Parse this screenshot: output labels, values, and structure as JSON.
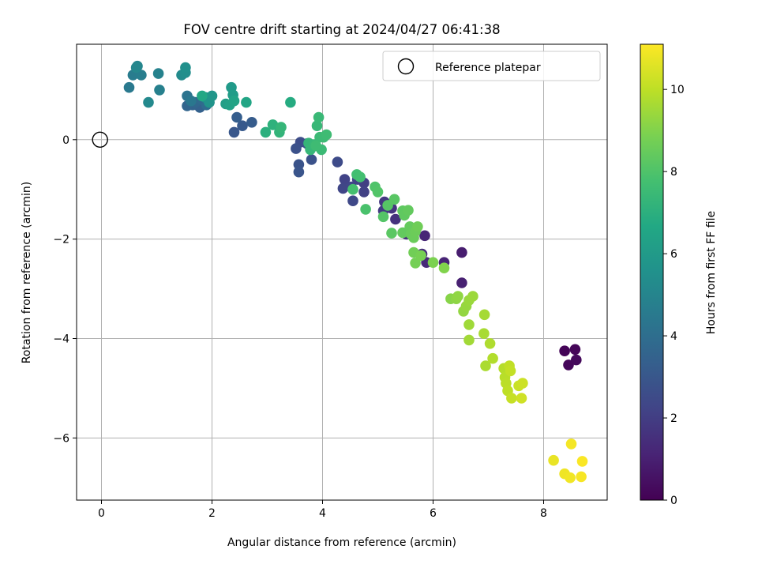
{
  "chart_data": {
    "type": "scatter",
    "title": "FOV centre drift starting at 2024/04/27 06:41:38",
    "xlabel": "Angular distance from reference (arcmin)",
    "ylabel": "Rotation from reference (arcmin)",
    "xlim": [
      -0.45,
      9.15
    ],
    "ylim": [
      -7.25,
      1.92
    ],
    "xticks": [
      0,
      2,
      4,
      6,
      8
    ],
    "yticks": [
      0,
      -2,
      -4,
      -6
    ],
    "xtick_labels": [
      "0",
      "2",
      "4",
      "6",
      "8"
    ],
    "ytick_labels": [
      "0",
      "−2",
      "−4",
      "−6"
    ],
    "grid": true,
    "legend": {
      "position": "top-right",
      "label": "Reference platepar"
    },
    "reference_point": {
      "x": 0,
      "y": 0
    },
    "colorbar": {
      "label": "Hours from first FF file",
      "range": [
        0,
        11.1
      ],
      "ticks": [
        0,
        2,
        4,
        6,
        8,
        10
      ],
      "tick_labels": [
        "0",
        "2",
        "4",
        "6",
        "8",
        "10"
      ],
      "colormap": "viridis"
    },
    "points": [
      [
        8.38,
        -4.25,
        0.1
      ],
      [
        8.57,
        -4.22,
        0.15
      ],
      [
        8.45,
        -4.53,
        0.2
      ],
      [
        8.59,
        -4.43,
        0.25
      ],
      [
        6.52,
        -2.27,
        0.9
      ],
      [
        6.52,
        -2.88,
        1.0
      ],
      [
        6.2,
        -2.47,
        1.1
      ],
      [
        5.85,
        -1.93,
        1.2
      ],
      [
        5.88,
        -2.47,
        1.3
      ],
      [
        5.8,
        -2.3,
        1.4
      ],
      [
        5.52,
        -1.9,
        1.5
      ],
      [
        5.32,
        -1.6,
        1.6
      ],
      [
        5.25,
        -1.38,
        1.7
      ],
      [
        5.12,
        -1.25,
        1.8
      ],
      [
        5.1,
        -1.43,
        1.9
      ],
      [
        4.75,
        -0.87,
        2.0
      ],
      [
        4.75,
        -1.05,
        2.1
      ],
      [
        4.63,
        -0.8,
        2.2
      ],
      [
        4.4,
        -0.8,
        2.2
      ],
      [
        4.37,
        -0.98,
        2.3
      ],
      [
        4.52,
        -0.95,
        2.35
      ],
      [
        4.55,
        -1.23,
        2.4
      ],
      [
        4.27,
        -0.45,
        2.5
      ],
      [
        3.6,
        -0.05,
        2.6
      ],
      [
        3.72,
        -0.08,
        2.7
      ],
      [
        3.52,
        -0.18,
        2.75
      ],
      [
        3.8,
        -0.4,
        2.8
      ],
      [
        3.57,
        -0.5,
        2.85
      ],
      [
        3.57,
        -0.65,
        2.9
      ],
      [
        2.4,
        0.15,
        3.0
      ],
      [
        2.55,
        0.28,
        3.1
      ],
      [
        2.72,
        0.35,
        3.2
      ],
      [
        2.45,
        0.45,
        3.3
      ],
      [
        1.78,
        0.65,
        3.4
      ],
      [
        1.65,
        0.7,
        3.5
      ],
      [
        1.55,
        0.68,
        3.6
      ],
      [
        1.7,
        0.75,
        3.7
      ],
      [
        1.82,
        0.8,
        3.8
      ],
      [
        1.9,
        0.7,
        3.9
      ],
      [
        1.95,
        0.75,
        4.0
      ],
      [
        1.55,
        0.88,
        4.2
      ],
      [
        1.62,
        0.78,
        4.4
      ],
      [
        0.5,
        1.05,
        4.5
      ],
      [
        0.57,
        1.3,
        4.6
      ],
      [
        0.72,
        1.3,
        4.7
      ],
      [
        1.05,
        1.0,
        4.8
      ],
      [
        1.03,
        1.33,
        4.9
      ],
      [
        0.65,
        1.48,
        5.0
      ],
      [
        0.63,
        1.45,
        5.1
      ],
      [
        0.85,
        0.75,
        5.2
      ],
      [
        1.45,
        1.3,
        5.3
      ],
      [
        1.52,
        1.35,
        5.4
      ],
      [
        1.52,
        1.45,
        5.5
      ],
      [
        1.88,
        0.85,
        5.6
      ],
      [
        1.95,
        0.75,
        5.7
      ],
      [
        2.0,
        0.88,
        5.8
      ],
      [
        2.35,
        1.05,
        6.0
      ],
      [
        2.38,
        0.9,
        6.1
      ],
      [
        2.25,
        0.72,
        6.2
      ],
      [
        2.32,
        0.7,
        6.3
      ],
      [
        2.4,
        0.78,
        6.4
      ],
      [
        2.62,
        0.75,
        6.5
      ],
      [
        1.82,
        0.88,
        6.6
      ],
      [
        3.42,
        0.75,
        6.8
      ],
      [
        2.97,
        0.15,
        7.0
      ],
      [
        3.1,
        0.3,
        7.1
      ],
      [
        3.22,
        0.15,
        7.2
      ],
      [
        3.25,
        0.25,
        7.3
      ],
      [
        3.75,
        -0.07,
        7.3
      ],
      [
        3.78,
        -0.2,
        7.35
      ],
      [
        3.85,
        -0.1,
        7.4
      ],
      [
        3.9,
        0.28,
        7.4
      ],
      [
        3.93,
        0.45,
        7.45
      ],
      [
        3.95,
        0.05,
        7.5
      ],
      [
        3.98,
        -0.2,
        7.5
      ],
      [
        4.02,
        0.05,
        7.55
      ],
      [
        4.07,
        0.1,
        7.6
      ],
      [
        3.88,
        -0.12,
        7.6
      ],
      [
        4.62,
        -0.7,
        7.7
      ],
      [
        4.68,
        -0.75,
        7.75
      ],
      [
        4.55,
        -1.0,
        7.8
      ],
      [
        4.78,
        -1.4,
        7.9
      ],
      [
        4.95,
        -0.95,
        8.0
      ],
      [
        5.0,
        -1.05,
        8.05
      ],
      [
        5.1,
        -1.55,
        8.1
      ],
      [
        5.18,
        -1.32,
        8.15
      ],
      [
        5.3,
        -1.2,
        8.2
      ],
      [
        5.25,
        -1.88,
        8.25
      ],
      [
        5.45,
        -1.43,
        8.3
      ],
      [
        5.48,
        -1.52,
        8.35
      ],
      [
        5.55,
        -1.42,
        8.4
      ],
      [
        5.45,
        -1.87,
        8.4
      ],
      [
        5.58,
        -1.75,
        8.45
      ],
      [
        5.6,
        -1.9,
        8.5
      ],
      [
        5.65,
        -1.97,
        8.55
      ],
      [
        5.68,
        -1.85,
        8.6
      ],
      [
        5.72,
        -1.75,
        8.65
      ],
      [
        5.65,
        -2.27,
        8.7
      ],
      [
        5.68,
        -2.48,
        8.75
      ],
      [
        5.78,
        -2.33,
        8.8
      ],
      [
        6.0,
        -2.47,
        8.9
      ],
      [
        6.2,
        -2.58,
        9.0
      ],
      [
        6.32,
        -3.2,
        9.1
      ],
      [
        6.42,
        -3.2,
        9.2
      ],
      [
        6.45,
        -3.15,
        9.25
      ],
      [
        6.55,
        -3.45,
        9.3
      ],
      [
        6.6,
        -3.35,
        9.35
      ],
      [
        6.65,
        -3.23,
        9.4
      ],
      [
        6.72,
        -3.15,
        9.45
      ],
      [
        6.65,
        -3.72,
        9.5
      ],
      [
        6.65,
        -4.03,
        9.55
      ],
      [
        6.93,
        -3.52,
        9.6
      ],
      [
        6.92,
        -3.9,
        9.65
      ],
      [
        6.95,
        -4.55,
        9.7
      ],
      [
        7.03,
        -4.1,
        9.75
      ],
      [
        7.08,
        -4.4,
        9.8
      ],
      [
        7.28,
        -4.6,
        9.85
      ],
      [
        7.3,
        -4.78,
        9.9
      ],
      [
        7.32,
        -4.9,
        9.95
      ],
      [
        7.35,
        -5.05,
        10.0
      ],
      [
        7.38,
        -4.55,
        10.05
      ],
      [
        7.4,
        -4.65,
        10.1
      ],
      [
        7.42,
        -5.2,
        10.15
      ],
      [
        7.55,
        -4.95,
        10.2
      ],
      [
        7.62,
        -4.9,
        10.25
      ],
      [
        7.6,
        -5.2,
        10.3
      ],
      [
        8.18,
        -6.45,
        10.75
      ],
      [
        8.38,
        -6.72,
        10.85
      ],
      [
        8.48,
        -6.8,
        10.9
      ],
      [
        8.5,
        -6.12,
        10.95
      ],
      [
        8.68,
        -6.78,
        11.0
      ],
      [
        8.7,
        -6.47,
        11.05
      ]
    ]
  }
}
